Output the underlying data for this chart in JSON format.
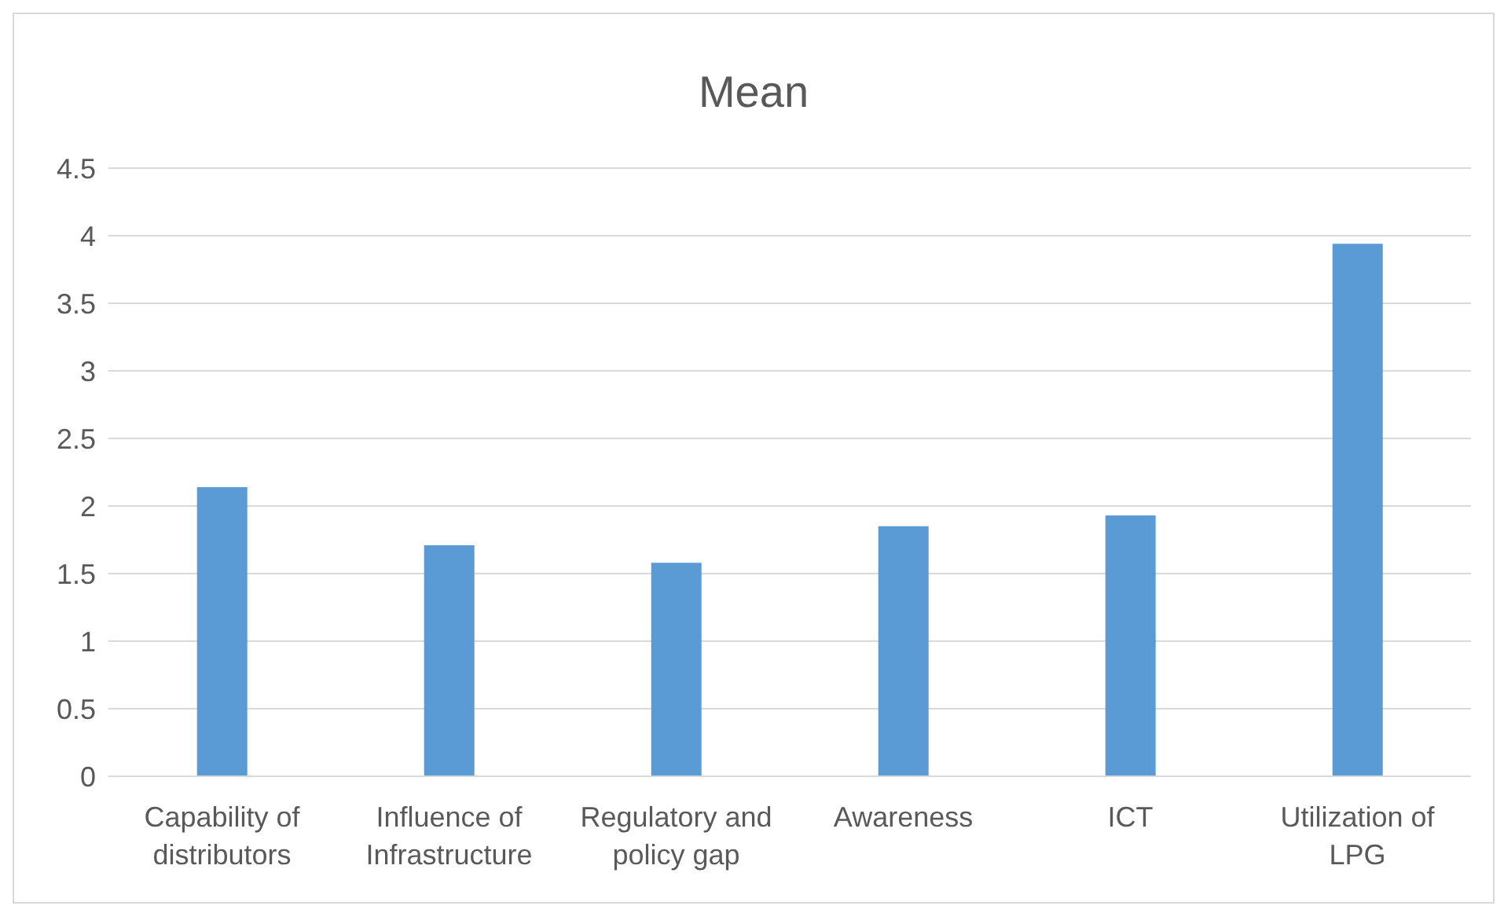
{
  "chart_data": {
    "type": "bar",
    "title": "Mean",
    "categories": [
      "Capability of distributors",
      "Influence of Infrastructure",
      "Regulatory and policy gap",
      "Awareness",
      "ICT",
      "Utilization of LPG"
    ],
    "values": [
      2.14,
      1.71,
      1.58,
      1.85,
      1.93,
      3.94
    ],
    "color": "#5b9bd5",
    "ylim": [
      0,
      4.5
    ],
    "yticks": [
      0,
      0.5,
      1,
      1.5,
      2,
      2.5,
      3,
      3.5,
      4,
      4.5
    ],
    "grid": "y",
    "legend": false
  }
}
